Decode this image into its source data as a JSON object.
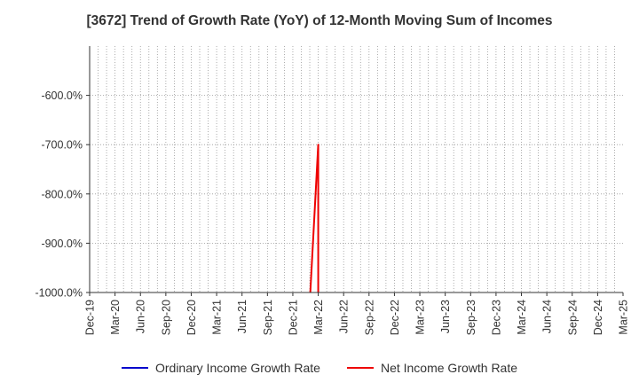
{
  "chart_data": {
    "type": "line",
    "title": "[3672]  Trend of Growth Rate (YoY) of 12-Month Moving Sum of Incomes",
    "xlabel": "",
    "ylabel": "",
    "x": [
      "Dec-19",
      "Mar-20",
      "Jun-20",
      "Sep-20",
      "Dec-20",
      "Mar-21",
      "Jun-21",
      "Sep-21",
      "Dec-21",
      "Mar-22",
      "Jun-22",
      "Sep-22",
      "Dec-22",
      "Mar-23",
      "Jun-23",
      "Sep-23",
      "Dec-23",
      "Mar-24",
      "Jun-24",
      "Sep-24",
      "Dec-24",
      "Mar-25"
    ],
    "x_tick_labels": [
      "Dec-19",
      "Mar-20",
      "Jun-20",
      "Sep-20",
      "Dec-20",
      "Mar-21",
      "Jun-21",
      "Sep-21",
      "Dec-21",
      "Mar-22",
      "Jun-22",
      "Sep-22",
      "Dec-22",
      "Mar-23",
      "Jun-23",
      "Sep-23",
      "Dec-23",
      "Mar-24",
      "Jun-24",
      "Sep-24",
      "Dec-24",
      "Mar-25"
    ],
    "y_ticks": [
      -1000,
      -900,
      -800,
      -700,
      -600
    ],
    "y_tick_labels": [
      "-1000.0%",
      "-900.0%",
      "-800.0%",
      "-700.0%",
      "-600.0%"
    ],
    "ylim": [
      -1000,
      -500
    ],
    "grid": true,
    "legend_position": "bottom",
    "series": [
      {
        "name": "Ordinary Income Growth Rate",
        "color": "#0000cc",
        "points": []
      },
      {
        "name": "Net Income Growth Rate",
        "color": "#ee0000",
        "points": [
          {
            "x": "Feb-22",
            "y": -1020
          },
          {
            "x": "Mar-22",
            "y": -700
          },
          {
            "x": "Mar-22",
            "y": -1020
          }
        ]
      }
    ]
  }
}
